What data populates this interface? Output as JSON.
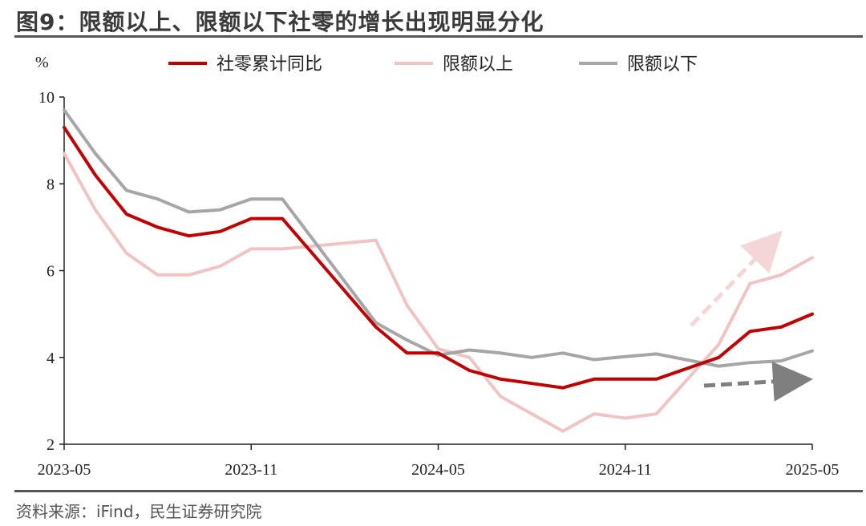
{
  "title": "图9：限额以上、限额以下社零的增长出现明显分化",
  "source": "资料来源：iFind，民生证券研究院",
  "chart_data": {
    "type": "line",
    "ylabel": "%",
    "ylim": [
      2,
      10
    ],
    "y_ticks": [
      2,
      4,
      6,
      8,
      10
    ],
    "x_tick_labels": [
      "2023-05",
      "2023-11",
      "2024-05",
      "2024-11",
      "2025-05"
    ],
    "x": [
      "2023-05",
      "2023-06",
      "2023-07",
      "2023-08",
      "2023-09",
      "2023-10",
      "2023-11",
      "2023-12",
      "2024-03",
      "2024-04",
      "2024-05",
      "2024-06",
      "2024-07",
      "2024-08",
      "2024-09",
      "2024-10",
      "2024-11",
      "2024-12",
      "2025-02",
      "2025-03",
      "2025-04",
      "2025-05"
    ],
    "legend_position": "top",
    "series": [
      {
        "name": "社零累计同比",
        "color": "#c00000",
        "values": [
          9.3,
          8.2,
          7.3,
          7.0,
          6.8,
          6.9,
          7.2,
          7.2,
          4.7,
          4.1,
          4.1,
          3.7,
          3.5,
          3.4,
          3.3,
          3.5,
          3.5,
          3.5,
          4.0,
          4.6,
          4.7,
          5.0
        ]
      },
      {
        "name": "限额以上",
        "color": "#f0c4c4",
        "values": [
          8.7,
          7.4,
          6.4,
          5.9,
          5.9,
          6.1,
          6.5,
          6.5,
          6.7,
          5.2,
          4.2,
          4.0,
          3.1,
          2.7,
          2.3,
          2.7,
          2.6,
          2.7,
          4.3,
          5.7,
          5.9,
          6.3
        ]
      },
      {
        "name": "限额以下",
        "color": "#a6a6a6",
        "values": [
          9.7,
          8.7,
          7.85,
          7.65,
          7.35,
          7.4,
          7.65,
          7.65,
          4.8,
          4.4,
          4.05,
          4.17,
          4.1,
          4.0,
          4.1,
          3.95,
          4.02,
          4.08,
          3.8,
          3.88,
          3.92,
          4.15
        ]
      }
    ]
  }
}
